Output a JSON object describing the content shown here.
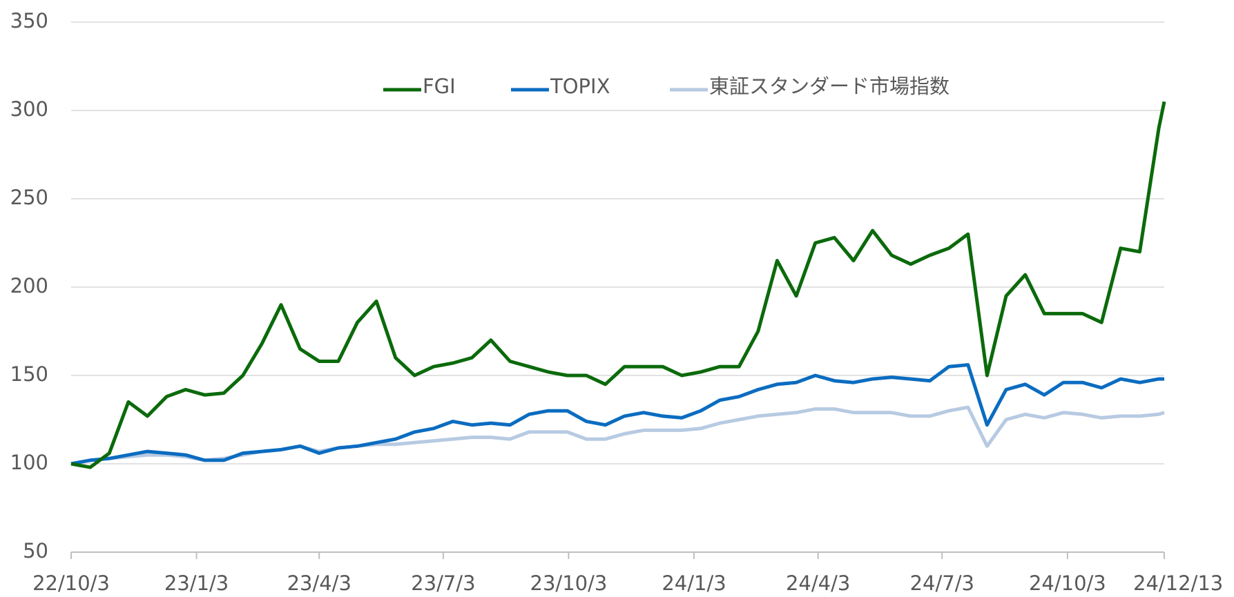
{
  "chart_data": {
    "type": "line",
    "x": [
      "22/10/3",
      "22/10/17",
      "22/10/31",
      "22/11/14",
      "22/11/28",
      "22/12/12",
      "22/12/26",
      "23/1/9",
      "23/1/23",
      "23/2/6",
      "23/2/20",
      "23/3/6",
      "23/3/20",
      "23/4/3",
      "23/4/17",
      "23/5/1",
      "23/5/15",
      "23/5/29",
      "23/6/12",
      "23/6/26",
      "23/7/10",
      "23/7/24",
      "23/8/7",
      "23/8/21",
      "23/9/4",
      "23/9/18",
      "23/10/2",
      "23/10/16",
      "23/10/30",
      "23/11/13",
      "23/11/27",
      "23/12/11",
      "23/12/25",
      "24/1/8",
      "24/1/22",
      "24/2/5",
      "24/2/19",
      "24/3/4",
      "24/3/18",
      "24/4/1",
      "24/4/15",
      "24/4/29",
      "24/5/13",
      "24/5/27",
      "24/6/10",
      "24/6/24",
      "24/7/8",
      "24/7/22",
      "24/8/5",
      "24/8/19",
      "24/9/2",
      "24/9/16",
      "24/9/30",
      "24/10/14",
      "24/10/28",
      "24/11/11",
      "24/11/25",
      "24/12/9",
      "24/12/13"
    ],
    "series": [
      {
        "name": "FGI",
        "color": "#0b6a0b",
        "values": [
          100,
          98,
          106,
          135,
          127,
          138,
          142,
          139,
          140,
          150,
          168,
          190,
          165,
          158,
          158,
          180,
          192,
          160,
          150,
          155,
          157,
          160,
          170,
          158,
          155,
          152,
          150,
          150,
          145,
          155,
          155,
          155,
          150,
          152,
          155,
          155,
          175,
          215,
          195,
          225,
          228,
          215,
          232,
          218,
          213,
          218,
          222,
          230,
          150,
          195,
          207,
          185,
          185,
          185,
          180,
          222,
          220,
          290,
          305
        ]
      },
      {
        "name": "TOPIX",
        "color": "#0b6cc0",
        "values": [
          100,
          102,
          103,
          105,
          107,
          106,
          105,
          102,
          102,
          106,
          107,
          108,
          110,
          106,
          109,
          110,
          112,
          114,
          118,
          120,
          124,
          122,
          123,
          122,
          128,
          130,
          130,
          124,
          122,
          127,
          129,
          127,
          126,
          130,
          136,
          138,
          142,
          145,
          146,
          150,
          147,
          146,
          148,
          149,
          148,
          147,
          155,
          156,
          122,
          142,
          145,
          139,
          146,
          146,
          143,
          148,
          146,
          148,
          148
        ]
      },
      {
        "name": "東証スタンダード市場指数",
        "color": "#b7cae2",
        "values": [
          100,
          102,
          103,
          104,
          105,
          105,
          104,
          102,
          103,
          105,
          107,
          108,
          110,
          107,
          109,
          110,
          111,
          111,
          112,
          113,
          114,
          115,
          115,
          114,
          118,
          118,
          118,
          114,
          114,
          117,
          119,
          119,
          119,
          120,
          123,
          125,
          127,
          128,
          129,
          131,
          131,
          129,
          129,
          129,
          127,
          127,
          130,
          132,
          110,
          125,
          128,
          126,
          129,
          128,
          126,
          127,
          127,
          128,
          129
        ]
      }
    ],
    "xlim": [
      "22/10/3",
      "24/12/13"
    ],
    "xticks": [
      "22/10/3",
      "23/1/3",
      "23/4/3",
      "23/7/3",
      "23/10/3",
      "24/1/3",
      "24/4/3",
      "24/7/3",
      "24/10/3",
      "24/12/13"
    ],
    "ylim": [
      50,
      350
    ],
    "yticks": [
      50,
      100,
      150,
      200,
      250,
      300,
      350
    ],
    "grid": true,
    "legend": "top"
  }
}
